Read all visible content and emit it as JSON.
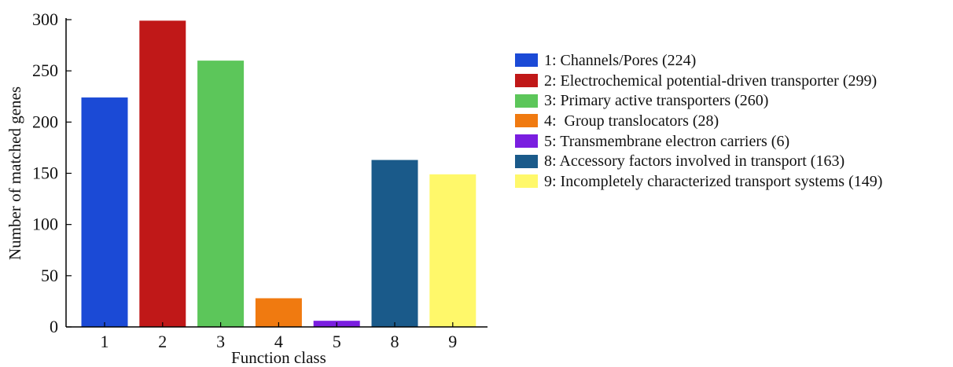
{
  "chart_data": {
    "type": "bar",
    "categories": [
      "1",
      "2",
      "3",
      "4",
      "5",
      "8",
      "9"
    ],
    "values": [
      224,
      299,
      260,
      28,
      6,
      163,
      149
    ],
    "colors": [
      "#1b4ad6",
      "#c01818",
      "#5cc65a",
      "#f07a10",
      "#7a1ee0",
      "#1a5a8a",
      "#fff86a"
    ],
    "xlabel": "Function class",
    "ylabel": "Number of matched genes",
    "ylim": [
      0,
      300
    ],
    "yticks": [
      0,
      50,
      100,
      150,
      200,
      250,
      300
    ],
    "grid": false,
    "legend_position": "right",
    "legend": [
      {
        "label": "1: Channels/Pores (224)",
        "color": "#1b4ad6"
      },
      {
        "label": "2: Electrochemical potential-driven transporter (299)",
        "color": "#c01818"
      },
      {
        "label": "3: Primary active transporters (260)",
        "color": "#5cc65a"
      },
      {
        "label": "4:  Group translocators (28)",
        "color": "#f07a10"
      },
      {
        "label": "5: Transmembrane electron carriers (6)",
        "color": "#7a1ee0"
      },
      {
        "label": "8: Accessory factors involved in transport (163)",
        "color": "#1a5a8a"
      },
      {
        "label": "9: Incompletely characterized transport systems (149)",
        "color": "#fff86a"
      }
    ]
  }
}
